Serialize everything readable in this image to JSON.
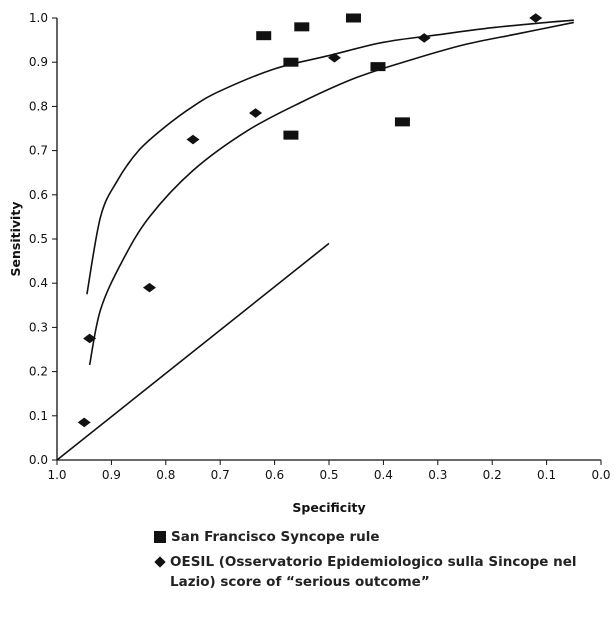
{
  "chart_data": {
    "type": "scatter",
    "xlabel": "Specificity",
    "ylabel": "Sensitivity",
    "xlim": [
      1.0,
      0.0
    ],
    "ylim": [
      0.0,
      1.0
    ],
    "x_reversed": true,
    "x_ticks": [
      "1.0",
      "0.9",
      "0.8",
      "0.7",
      "0.6",
      "0.5",
      "0.4",
      "0.3",
      "0.2",
      "0.1",
      "0.0"
    ],
    "y_ticks": [
      "0.0",
      "0.1",
      "0.2",
      "0.3",
      "0.4",
      "0.5",
      "0.6",
      "0.7",
      "0.8",
      "0.9",
      "1.0"
    ],
    "grid": false,
    "legend_position": "bottom",
    "series": [
      {
        "name": "San Francisco Syncope rule",
        "marker": "square",
        "color": "#111111",
        "points": [
          {
            "x": 0.62,
            "y": 0.96
          },
          {
            "x": 0.55,
            "y": 0.98
          },
          {
            "x": 0.455,
            "y": 1.0
          },
          {
            "x": 0.57,
            "y": 0.9
          },
          {
            "x": 0.41,
            "y": 0.89
          },
          {
            "x": 0.57,
            "y": 0.735
          },
          {
            "x": 0.365,
            "y": 0.765
          }
        ]
      },
      {
        "name": "OESIL (Osservatorio Epidemiologico sulla Sincope nel Lazio) score of “serious outcome”",
        "marker": "diamond",
        "color": "#111111",
        "points": [
          {
            "x": 0.95,
            "y": 0.085
          },
          {
            "x": 0.94,
            "y": 0.275
          },
          {
            "x": 0.83,
            "y": 0.39
          },
          {
            "x": 0.75,
            "y": 0.725
          },
          {
            "x": 0.635,
            "y": 0.785
          },
          {
            "x": 0.49,
            "y": 0.91
          },
          {
            "x": 0.325,
            "y": 0.955
          },
          {
            "x": 0.12,
            "y": 1.0
          }
        ]
      }
    ],
    "curves": [
      {
        "role": "upper-curve",
        "points": [
          [
            0.945,
            0.375
          ],
          [
            0.92,
            0.55
          ],
          [
            0.89,
            0.63
          ],
          [
            0.85,
            0.7
          ],
          [
            0.8,
            0.755
          ],
          [
            0.75,
            0.8
          ],
          [
            0.7,
            0.835
          ],
          [
            0.6,
            0.885
          ],
          [
            0.5,
            0.915
          ],
          [
            0.4,
            0.945
          ],
          [
            0.3,
            0.962
          ],
          [
            0.2,
            0.978
          ],
          [
            0.1,
            0.99
          ],
          [
            0.05,
            0.995
          ]
        ]
      },
      {
        "role": "lower-curve",
        "points": [
          [
            0.94,
            0.215
          ],
          [
            0.92,
            0.34
          ],
          [
            0.88,
            0.45
          ],
          [
            0.83,
            0.55
          ],
          [
            0.75,
            0.655
          ],
          [
            0.65,
            0.745
          ],
          [
            0.55,
            0.81
          ],
          [
            0.45,
            0.865
          ],
          [
            0.35,
            0.905
          ],
          [
            0.25,
            0.94
          ],
          [
            0.15,
            0.965
          ],
          [
            0.05,
            0.99
          ]
        ]
      },
      {
        "role": "chance-line",
        "points": [
          [
            1.0,
            0.0
          ],
          [
            0.5,
            0.49
          ]
        ]
      }
    ]
  },
  "legend": {
    "square_label": "San Francisco Syncope rule",
    "diamond_label": "OESIL (Osservatorio Epidemiologico sulla Sincope nel Lazio) score of “serious outcome”"
  }
}
